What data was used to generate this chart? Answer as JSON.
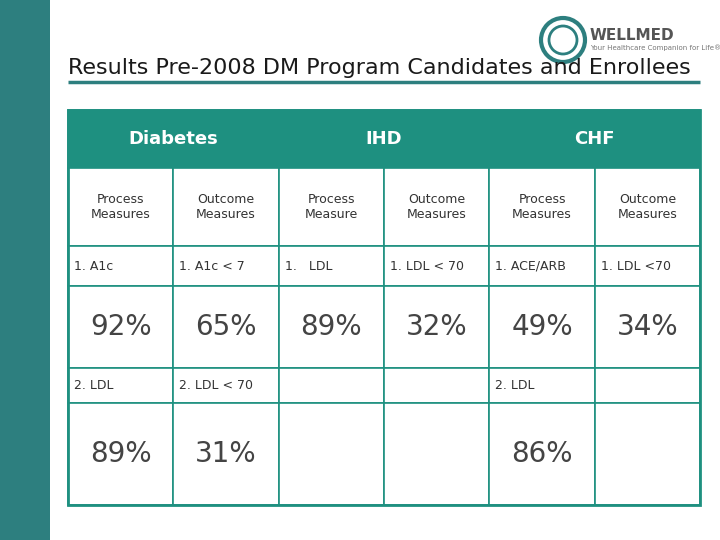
{
  "title": "Results Pre-2008 DM Program Candidates and Enrollees",
  "title_fontsize": 16,
  "title_color": "#1a1a1a",
  "bg_color": "#ffffff",
  "left_bar_color": "#2d7f7f",
  "underline_color": "#2d7f7f",
  "table": {
    "header_bg": "#1e9080",
    "header_text_color": "#ffffff",
    "header_fontsize": 13,
    "headers": [
      "Diabetes",
      "IHD",
      "CHF"
    ],
    "subheaders": [
      [
        "Process\nMeasures",
        "Outcome\nMeasures"
      ],
      [
        "Process\nMeasure",
        "Outcome\nMeasures"
      ],
      [
        "Process\nMeasures",
        "Outcome\nMeasures"
      ]
    ],
    "row1_labels": [
      [
        "1. A1c",
        "1. A1c < 7"
      ],
      [
        "1.   LDL",
        "1. LDL < 70"
      ],
      [
        "1. ACE/ARB",
        "1. LDL <70"
      ]
    ],
    "row1_values": [
      [
        "92%",
        "65%"
      ],
      [
        "89%",
        "32%"
      ],
      [
        "49%",
        "34%"
      ]
    ],
    "row2_labels": [
      [
        "2. LDL",
        "2. LDL < 70"
      ],
      [
        "",
        ""
      ],
      [
        "2. LDL",
        ""
      ]
    ],
    "row2_values": [
      [
        "89%",
        "31%"
      ],
      [
        "",
        ""
      ],
      [
        "86%",
        ""
      ]
    ],
    "value_fontsize": 20,
    "label_fontsize": 9,
    "subheader_fontsize": 9,
    "border_color": "#1e9080",
    "value_color": "#444444"
  }
}
